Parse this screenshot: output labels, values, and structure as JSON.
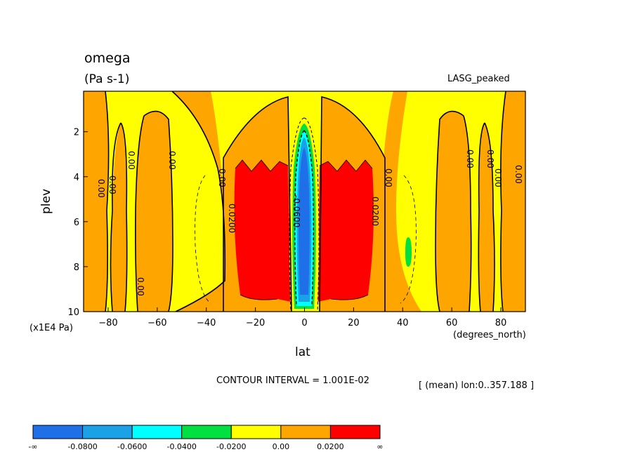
{
  "chart_data": {
    "type": "heatmap",
    "title": "omega",
    "units": "(Pa s-1)",
    "dataset": "LASG_peaked",
    "xlabel": "lat",
    "x_units": "(degrees_north)",
    "ylabel": "plev",
    "y_units": "(x1E4 Pa)",
    "xlim": [
      -90,
      90
    ],
    "ylim": [
      10,
      0.2
    ],
    "x_ticks": [
      -80,
      -60,
      -40,
      -20,
      0,
      20,
      40,
      60,
      80
    ],
    "y_ticks": [
      2,
      4,
      6,
      8,
      10
    ],
    "contour_interval": "CONTOUR INTERVAL = 1.001E-02",
    "mean_note": "[ (mean) lon:0..357.188 ]",
    "contour_labels": [
      "0.00",
      "0.0200",
      "-0.0600"
    ],
    "colorbar": {
      "colors": [
        "#1f6fe8",
        "#1aa1e6",
        "#00ffff",
        "#00e040",
        "#ffff00",
        "#ffa500",
        "#ff0000"
      ],
      "labels": [
        "-∞",
        "-0.0800",
        "-0.0600",
        "-0.0400",
        "-0.0200",
        "0.00",
        "0.0200",
        "∞"
      ]
    }
  }
}
